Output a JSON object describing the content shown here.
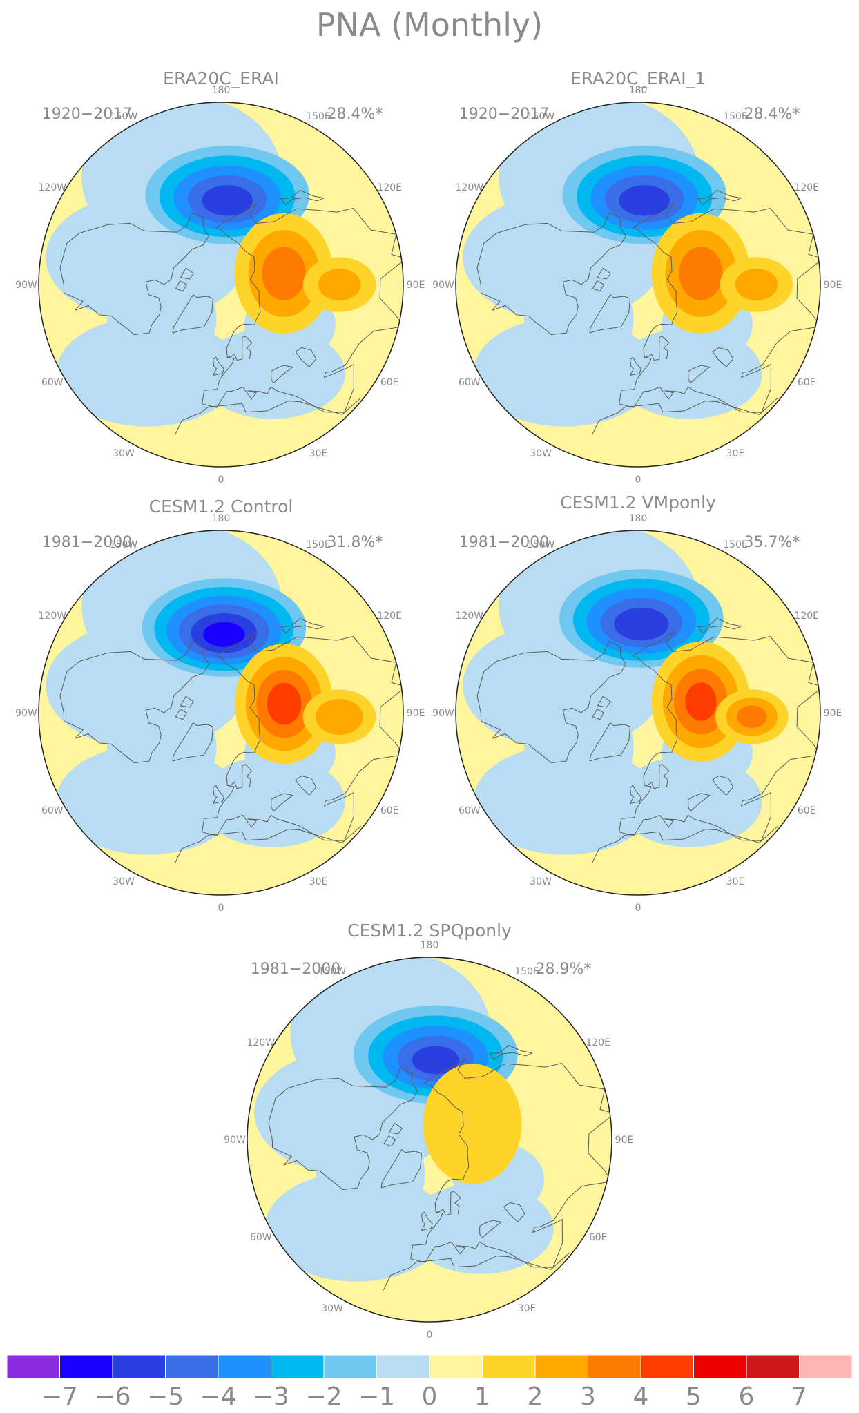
{
  "figure_title": "PNA (Monthly)",
  "panels": [
    {
      "title": "ERA20C_ERAI",
      "period": "1920−2017",
      "variance": "28.4%*",
      "lon_labels": [
        "180",
        "150E",
        "120E",
        "90E",
        "60E",
        "30E",
        "0",
        "30W",
        "60W",
        "90W",
        "120W",
        "150W"
      ],
      "pattern": {
        "neg_center_lon": 176,
        "neg_center_lat": 50,
        "neg_peak": -5.4,
        "pos_center_lon": 100,
        "pos_center_lat": 62,
        "pos_peak": 3.2,
        "pos2_center_lon": 90,
        "pos2_center_lat": 38,
        "pos2_peak": 2.0
      }
    },
    {
      "title": "ERA20C_ERAI_1",
      "period": "1920−2017",
      "variance": "28.4%*",
      "lon_labels": [
        "180",
        "150E",
        "120E",
        "90E",
        "60E",
        "30E",
        "0",
        "30W",
        "60W",
        "90W",
        "120W",
        "150W"
      ],
      "pattern": {
        "neg_center_lon": 176,
        "neg_center_lat": 50,
        "neg_peak": -5.4,
        "pos_center_lon": 100,
        "pos_center_lat": 62,
        "pos_peak": 3.2,
        "pos2_center_lon": 90,
        "pos2_center_lat": 38,
        "pos2_peak": 2.0
      }
    },
    {
      "title": "CESM1.2 Control",
      "period": "1981−2000",
      "variance": "31.8%*",
      "lon_labels": [
        "180",
        "150E",
        "120E",
        "90E",
        "60E",
        "30E",
        "0",
        "30W",
        "60W",
        "90W",
        "120W",
        "150W"
      ],
      "pattern": {
        "neg_center_lon": 178,
        "neg_center_lat": 52,
        "neg_peak": -6.3,
        "pos_center_lon": 98,
        "pos_center_lat": 62,
        "pos_peak": 4.2,
        "pos2_center_lon": 88,
        "pos2_center_lat": 38,
        "pos2_peak": 2.5
      }
    },
    {
      "title": "CESM1.2 VMponly",
      "period": "1981−2000",
      "variance": "35.7%*",
      "lon_labels": [
        "180",
        "150E",
        "120E",
        "90E",
        "60E",
        "30E",
        "0",
        "30W",
        "60W",
        "90W",
        "120W",
        "150W"
      ],
      "pattern": {
        "neg_center_lon": 178,
        "neg_center_lat": 48,
        "neg_peak": -5.6,
        "pos_center_lon": 100,
        "pos_center_lat": 62,
        "pos_peak": 4.0,
        "pos2_center_lon": 88,
        "pos2_center_lat": 40,
        "pos2_peak": 3.0
      }
    },
    {
      "title": "CESM1.2 SPQponly",
      "period": "1981−2000",
      "variance": "28.9%*",
      "lon_labels": [
        "180",
        "150E",
        "120E",
        "90E",
        "60E",
        "30E",
        "0",
        "30W",
        "60W",
        "90W",
        "120W",
        "150W"
      ],
      "pattern": {
        "neg_center_lon": 176,
        "neg_center_lat": 52,
        "neg_peak": -5.2,
        "pos_center_lon": 110,
        "pos_center_lat": 70,
        "pos_peak": 1.9,
        "pos2_center_lon": 90,
        "pos2_center_lat": 42,
        "pos2_peak": 0.6
      }
    }
  ],
  "colorbar": {
    "labels": [
      "−7",
      "−6",
      "−5",
      "−4",
      "−3",
      "−2",
      "−1",
      "0",
      "1",
      "2",
      "3",
      "4",
      "5",
      "6",
      "7"
    ],
    "colors": [
      "#8a2be2",
      "#1a00ff",
      "#2a3fe0",
      "#3a6ee8",
      "#1e90ff",
      "#00b8f0",
      "#70c8f0",
      "#b8dcf2",
      "#fff59c",
      "#ffd42a",
      "#ffa800",
      "#ff7a00",
      "#ff3c00",
      "#ee0000",
      "#cc1818",
      "#ffb4b4"
    ]
  }
}
